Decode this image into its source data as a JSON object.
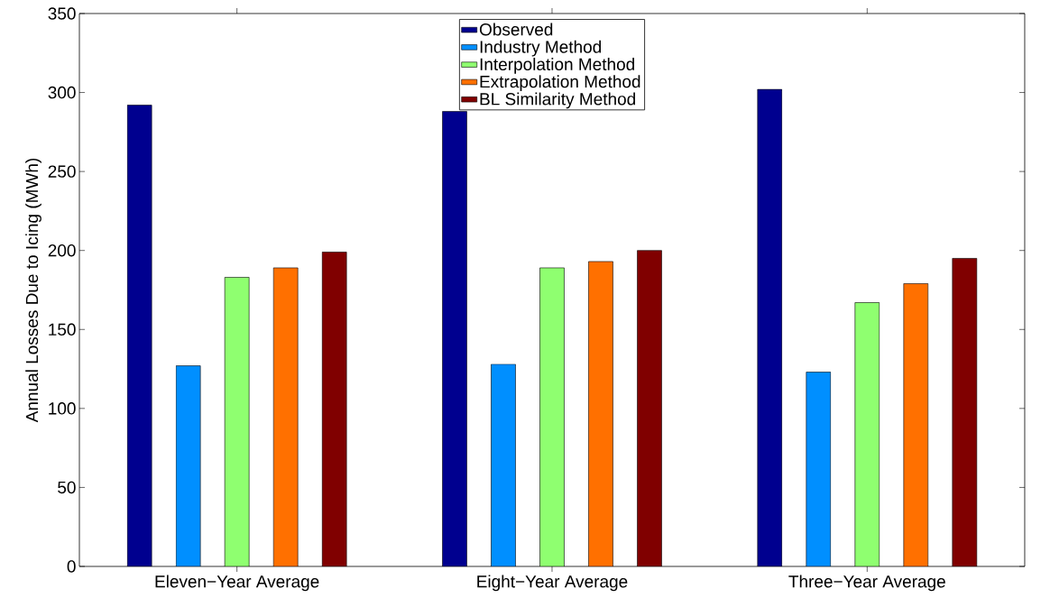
{
  "chart_data": {
    "type": "bar",
    "ylabel": "Annual Losses Due to Icing (MWh)",
    "categories": [
      "Eleven−Year Average",
      "Eight−Year Average",
      "Three−Year Average"
    ],
    "series": [
      {
        "name": "Observed",
        "color": "#00008f",
        "values": [
          292,
          288,
          302
        ]
      },
      {
        "name": "Industry Method",
        "color": "#008fff",
        "values": [
          127,
          128,
          123
        ]
      },
      {
        "name": "Interpolation Method",
        "color": "#8fff70",
        "values": [
          183,
          189,
          167
        ]
      },
      {
        "name": "Extrapolation Method",
        "color": "#ff7000",
        "values": [
          189,
          193,
          179
        ]
      },
      {
        "name": "BL Similarity Method",
        "color": "#800000",
        "values": [
          199,
          200,
          195
        ]
      }
    ],
    "ylim": [
      0,
      350
    ],
    "yticks": [
      0,
      50,
      100,
      150,
      200,
      250,
      300,
      350
    ],
    "legend": "top",
    "grid": false
  }
}
